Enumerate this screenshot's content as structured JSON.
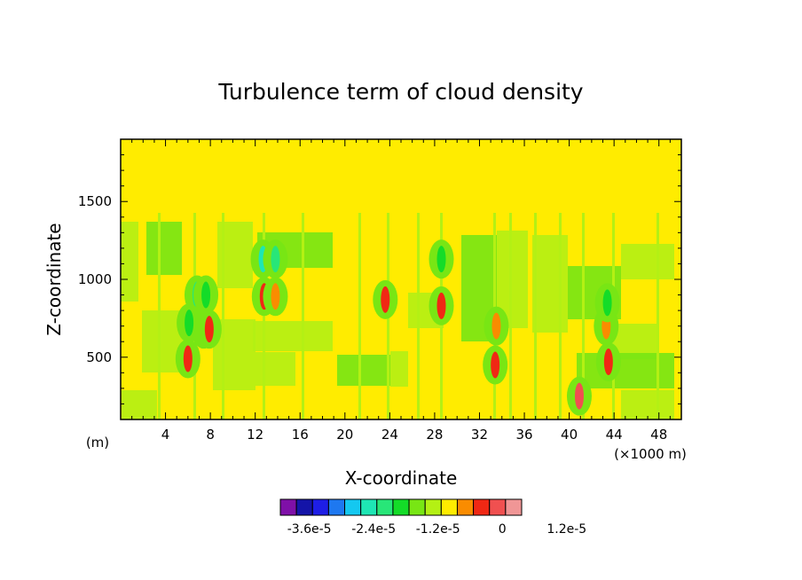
{
  "chart_data": {
    "type": "heatmap",
    "title": "Turbulence term of cloud density",
    "xlabel": "X-coordinate",
    "ylabel": "Z-coordinate",
    "x_units": "(×1000 m)",
    "y_units": "(m)",
    "xlim": [
      0,
      50
    ],
    "ylim": [
      100,
      1900
    ],
    "x_ticks": [
      4,
      8,
      12,
      16,
      20,
      24,
      28,
      32,
      36,
      40,
      44,
      48
    ],
    "x_tick_labels": [
      "4",
      "8",
      "12",
      "16",
      "20",
      "24",
      "28",
      "32",
      "36",
      "40",
      "44",
      "48"
    ],
    "y_ticks": [
      500,
      1000,
      1500
    ],
    "y_tick_labels": [
      "500",
      "1000",
      "1500"
    ],
    "background_level": "0",
    "colorbar": {
      "colors": [
        "#7f10a8",
        "#1414a8",
        "#1e1ee6",
        "#1e78f0",
        "#14c8f0",
        "#1ee6b4",
        "#28e678",
        "#14dc28",
        "#78e614",
        "#b4f014",
        "#ffec00",
        "#fa8c00",
        "#f02814",
        "#f05050",
        "#f09696"
      ],
      "tick_labels": [
        "-3.6e-5",
        "-2.4e-5",
        "-1.2e-5",
        "0",
        "1.2e-5"
      ]
    },
    "features": [
      {
        "x": 12.8,
        "z": 890,
        "color": "#f02814"
      },
      {
        "x": 13.8,
        "z": 890,
        "color": "#fa8c00"
      },
      {
        "x": 7.4,
        "z": 680,
        "color": "#fa8c00"
      },
      {
        "x": 7.9,
        "z": 680,
        "color": "#f02814"
      },
      {
        "x": 6.0,
        "z": 490,
        "color": "#f02814"
      },
      {
        "x": 12.7,
        "z": 1130,
        "color": "#1ee6b4"
      },
      {
        "x": 13.8,
        "z": 1130,
        "color": "#28e678"
      },
      {
        "x": 6.8,
        "z": 900,
        "color": "#28e678"
      },
      {
        "x": 7.6,
        "z": 900,
        "color": "#14dc28"
      },
      {
        "x": 6.1,
        "z": 720,
        "color": "#14dc28"
      },
      {
        "x": 23.6,
        "z": 870,
        "color": "#f02814"
      },
      {
        "x": 28.6,
        "z": 1130,
        "color": "#14dc28"
      },
      {
        "x": 28.6,
        "z": 830,
        "color": "#f02814"
      },
      {
        "x": 33.5,
        "z": 700,
        "color": "#fa8c00"
      },
      {
        "x": 33.4,
        "z": 450,
        "color": "#f02814"
      },
      {
        "x": 43.3,
        "z": 700,
        "color": "#fa8c00"
      },
      {
        "x": 43.4,
        "z": 850,
        "color": "#14dc28"
      },
      {
        "x": 43.5,
        "z": 470,
        "color": "#f02814"
      },
      {
        "x": 40.9,
        "z": 250,
        "color": "#f05050"
      }
    ]
  }
}
